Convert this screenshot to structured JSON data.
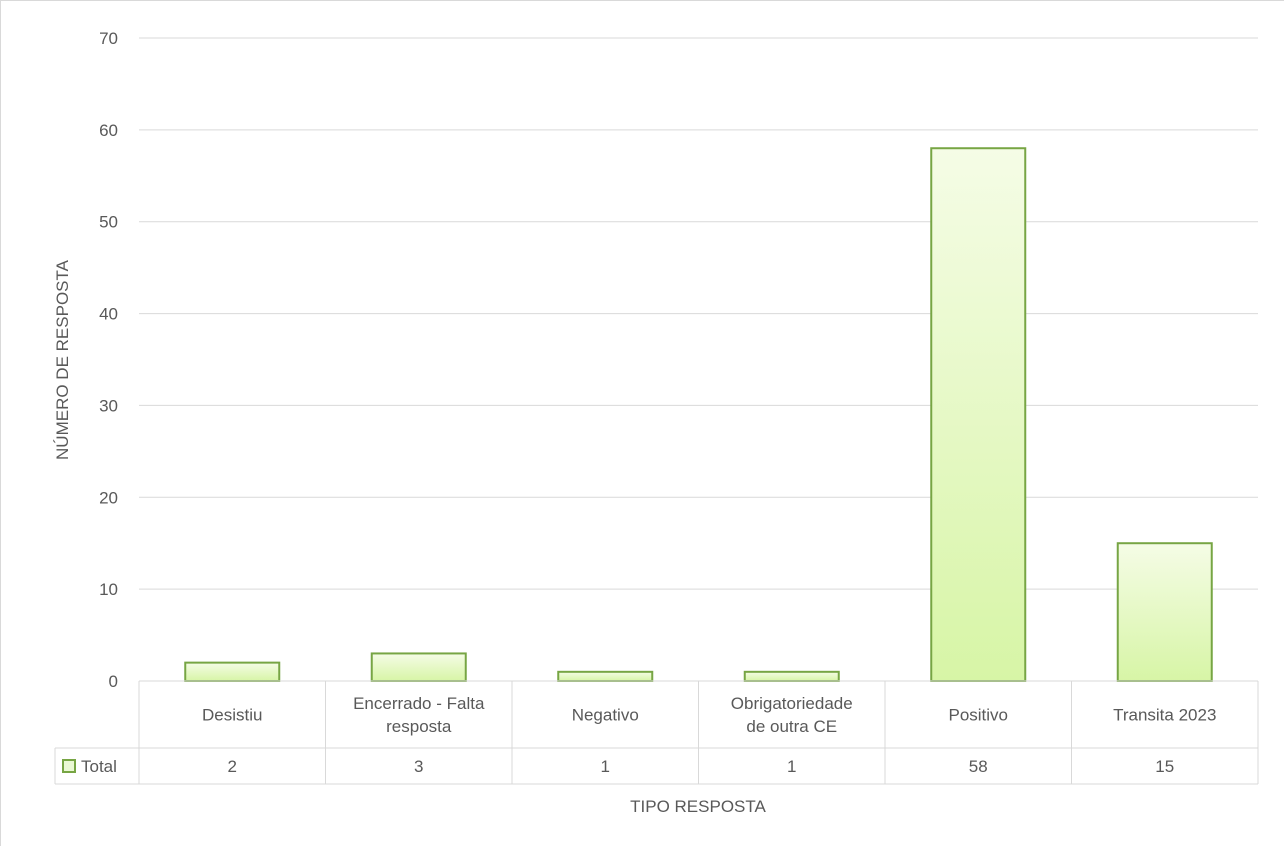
{
  "chart_data": {
    "type": "bar",
    "title": "",
    "xlabel": "TIPO RESPOSTA",
    "ylabel": "NÚMERO DE RESPOSTA",
    "categories": [
      [
        "Desistiu"
      ],
      [
        "Encerrado - Falta",
        "resposta"
      ],
      [
        "Negativo"
      ],
      [
        "Obrigatoriedade",
        "de outra CE"
      ],
      [
        "Positivo"
      ],
      [
        "Transita 2023"
      ]
    ],
    "series": [
      {
        "name": "Total",
        "values": [
          2,
          3,
          1,
          1,
          58,
          15
        ],
        "value_labels": [
          "2",
          "3",
          "1",
          "1",
          "58",
          "15"
        ]
      }
    ],
    "ylim": [
      0,
      70
    ],
    "yticks": [
      "0",
      "10",
      "20",
      "30",
      "40",
      "50",
      "60",
      "70"
    ],
    "grid": true,
    "legend": "data-table-row",
    "colors": {
      "bar_fill_top": "#f5fce6",
      "bar_fill_bottom": "#d7f5a6",
      "bar_stroke": "#77a544",
      "grid": "#d9d9d9",
      "axis_text": "#595959",
      "legend_key_fill": "#eaf8d4"
    }
  }
}
